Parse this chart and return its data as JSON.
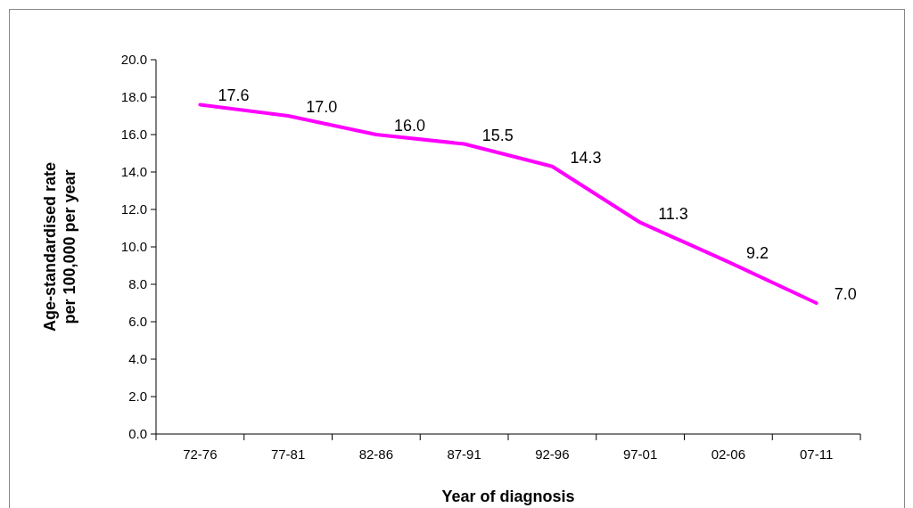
{
  "chart_data": {
    "type": "line",
    "xlabel": "Year of diagnosis",
    "ylabel": "Age-standardised rate per 100,000 per year",
    "categories": [
      "72-76",
      "77-81",
      "82-86",
      "87-91",
      "92-96",
      "97-01",
      "02-06",
      "07-11"
    ],
    "series": [
      {
        "color": "#ff00ff",
        "values": [
          17.6,
          17.0,
          16.0,
          15.5,
          14.3,
          11.3,
          9.2,
          7.0
        ],
        "value_labels": [
          "17.6",
          "17.0",
          "16.0",
          "15.5",
          "14.3",
          "11.3",
          "9.2",
          "7.0"
        ]
      }
    ],
    "ylim": [
      0,
      20
    ],
    "yticks": [
      {
        "value": 0,
        "label": "0.0"
      },
      {
        "value": 2,
        "label": "2.0"
      },
      {
        "value": 4,
        "label": "4.0"
      },
      {
        "value": 6,
        "label": "6.0"
      },
      {
        "value": 8,
        "label": "8.0"
      },
      {
        "value": 10,
        "label": "10.0"
      },
      {
        "value": 12,
        "label": "12.0"
      },
      {
        "value": 14,
        "label": "14.0"
      },
      {
        "value": 16,
        "label": "16.0"
      },
      {
        "value": 18,
        "label": "18.0"
      },
      {
        "value": 20,
        "label": "20.0"
      }
    ],
    "grid": false,
    "marker": "none",
    "line_style": "solid"
  }
}
